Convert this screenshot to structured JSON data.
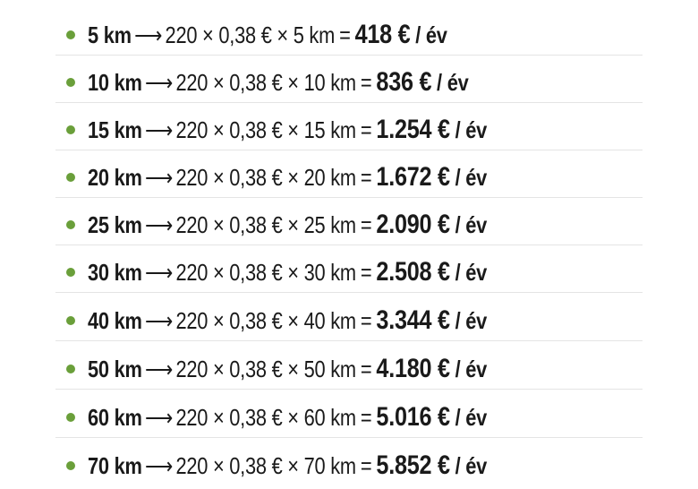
{
  "bullet_color": "#6a9f3a",
  "arrow": "⟶",
  "equals": "=",
  "unit": "/ év",
  "rows": [
    {
      "distance": "5 km",
      "formula": "220 × 0,38 € × 5 km",
      "result": "418 €"
    },
    {
      "distance": "10 km",
      "formula": "220 × 0,38 € × 10 km",
      "result": "836 €"
    },
    {
      "distance": "15 km",
      "formula": "220 × 0,38 € × 15 km",
      "result": "1.254 €"
    },
    {
      "distance": "20 km",
      "formula": "220 × 0,38 € × 20 km",
      "result": "1.672 €"
    },
    {
      "distance": "25 km",
      "formula": "220 × 0,38 € × 25 km",
      "result": "2.090 €"
    },
    {
      "distance": "30 km",
      "formula": "220 × 0,38 € × 30 km",
      "result": "2.508 €"
    },
    {
      "distance": "40 km",
      "formula": "220 × 0,38 € × 40 km",
      "result": "3.344 €"
    },
    {
      "distance": "50 km",
      "formula": "220 × 0,38 € × 50 km",
      "result": "4.180 €"
    },
    {
      "distance": "60 km",
      "formula": "220 × 0,38 € × 60 km",
      "result": "5.016 €"
    },
    {
      "distance": "70 km",
      "formula": "220 × 0,38 € × 70 km",
      "result": "5.852 €"
    }
  ]
}
